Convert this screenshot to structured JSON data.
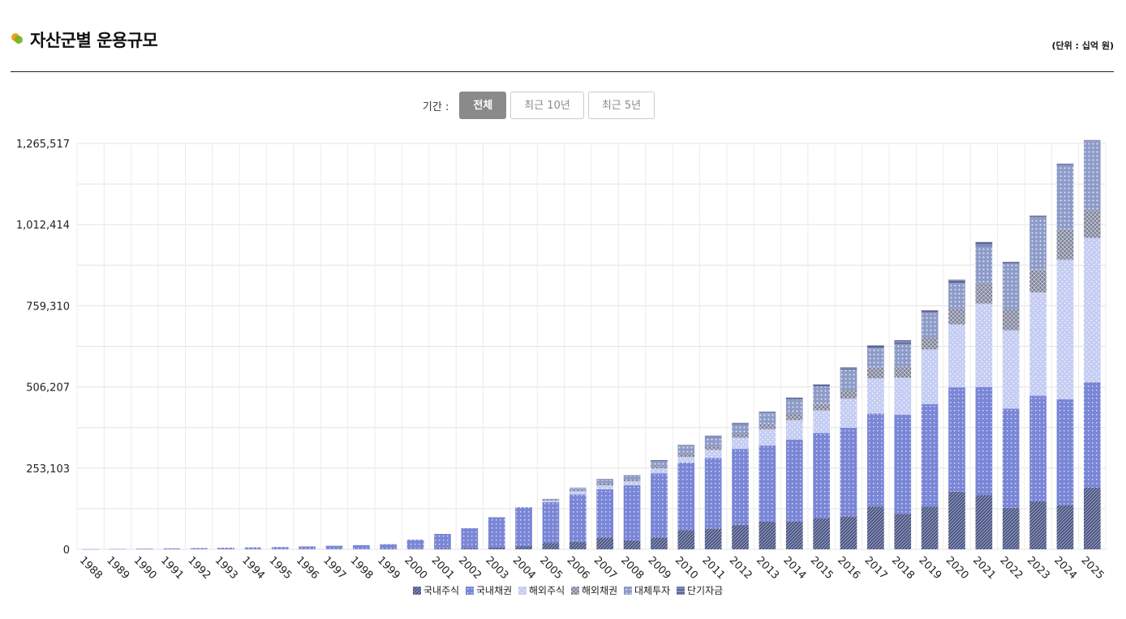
{
  "header": {
    "title": "자산군별 운용규모",
    "unit": "(단위 : 십억 원)"
  },
  "period": {
    "label": "기간 :",
    "buttons": [
      "전체",
      "최근 10년",
      "최근 5년"
    ],
    "active": "전체"
  },
  "colors": {
    "domestic_equity": "#4b5580",
    "domestic_bond": "#7a86d6",
    "foreign_equity": "#c5cdf3",
    "foreign_bond": "#7b7f95",
    "alternatives": "#8d9bc8",
    "short_term": "#5c6696"
  },
  "chart_data": {
    "type": "bar",
    "stacked": true,
    "ylim": [
      0,
      1265517
    ],
    "yticks": [
      "0",
      "253,103",
      "506,207",
      "759,310",
      "1,012,414",
      "1,265,517"
    ],
    "ytick_values": [
      0,
      253103,
      506207,
      759310,
      1012414,
      1265517
    ],
    "categories": [
      "1988",
      "1989",
      "1990",
      "1991",
      "1992",
      "1993",
      "1994",
      "1995",
      "1996",
      "1997",
      "1998",
      "1999",
      "2000",
      "2001",
      "2002",
      "2003",
      "2004",
      "2005",
      "2006",
      "2007",
      "2008",
      "2009",
      "2010",
      "2011",
      "2012",
      "2013",
      "2014",
      "2015",
      "2016",
      "2017",
      "2018",
      "2019",
      "2020",
      "2021",
      "2022",
      "2023",
      "2024",
      "2025"
    ],
    "series": [
      {
        "name": "국내주식",
        "key": "domestic_equity",
        "values": [
          0,
          0,
          0,
          0,
          0,
          0,
          0,
          0,
          0,
          0,
          0,
          1000,
          2000,
          3000,
          4000,
          6000,
          10000,
          20000,
          23000,
          37000,
          28000,
          37000,
          60000,
          65000,
          76000,
          86000,
          86000,
          97000,
          103000,
          133000,
          110000,
          133000,
          180000,
          169000,
          129000,
          149000,
          138000,
          192000
        ]
      },
      {
        "name": "국내채권",
        "key": "domestic_bond",
        "values": [
          500,
          1000,
          2000,
          3000,
          4000,
          5000,
          6000,
          7000,
          9000,
          11000,
          13000,
          15000,
          28000,
          45000,
          62000,
          94000,
          121000,
          127000,
          148000,
          150000,
          172000,
          200000,
          210000,
          220000,
          237000,
          238000,
          256000,
          266000,
          276000,
          290000,
          310000,
          320000,
          325000,
          337000,
          310000,
          330000,
          330000,
          329000
        ]
      },
      {
        "name": "해외주식",
        "key": "foreign_equity",
        "values": [
          0,
          0,
          0,
          0,
          0,
          0,
          0,
          0,
          0,
          0,
          0,
          0,
          0,
          0,
          0,
          0,
          0,
          5000,
          10000,
          12000,
          12000,
          15000,
          18000,
          25000,
          35000,
          50000,
          61000,
          70000,
          91000,
          110000,
          115000,
          170000,
          196000,
          260000,
          244000,
          322000,
          435000,
          450000
        ]
      },
      {
        "name": "해외채권",
        "key": "foreign_bond",
        "values": [
          0,
          0,
          0,
          0,
          0,
          0,
          0,
          0,
          0,
          0,
          0,
          0,
          0,
          0,
          0,
          0,
          0,
          2000,
          5000,
          6000,
          5000,
          8000,
          10000,
          10000,
          12000,
          15000,
          20000,
          20000,
          25000,
          33000,
          35000,
          37000,
          50000,
          63000,
          65000,
          70000,
          95000,
          85000
        ]
      },
      {
        "name": "대체투자",
        "key": "alternatives",
        "values": [
          0,
          0,
          0,
          0,
          0,
          0,
          0,
          0,
          0,
          0,
          0,
          0,
          0,
          0,
          0,
          0,
          0,
          2000,
          5000,
          12000,
          12000,
          15000,
          25000,
          30000,
          30000,
          35000,
          45000,
          55000,
          65000,
          60000,
          70000,
          75000,
          80000,
          117000,
          143000,
          165000,
          200000,
          215000
        ]
      },
      {
        "name": "단기자금",
        "key": "short_term",
        "values": [
          0,
          0,
          0,
          0,
          0,
          0,
          0,
          0,
          0,
          0,
          0,
          0,
          0,
          0,
          0,
          0,
          0,
          1000,
          2000,
          2000,
          2000,
          3000,
          3000,
          5000,
          5000,
          5000,
          5000,
          6000,
          8000,
          10000,
          12000,
          10000,
          10000,
          12000,
          5000,
          5000,
          5000,
          5000
        ]
      }
    ]
  }
}
